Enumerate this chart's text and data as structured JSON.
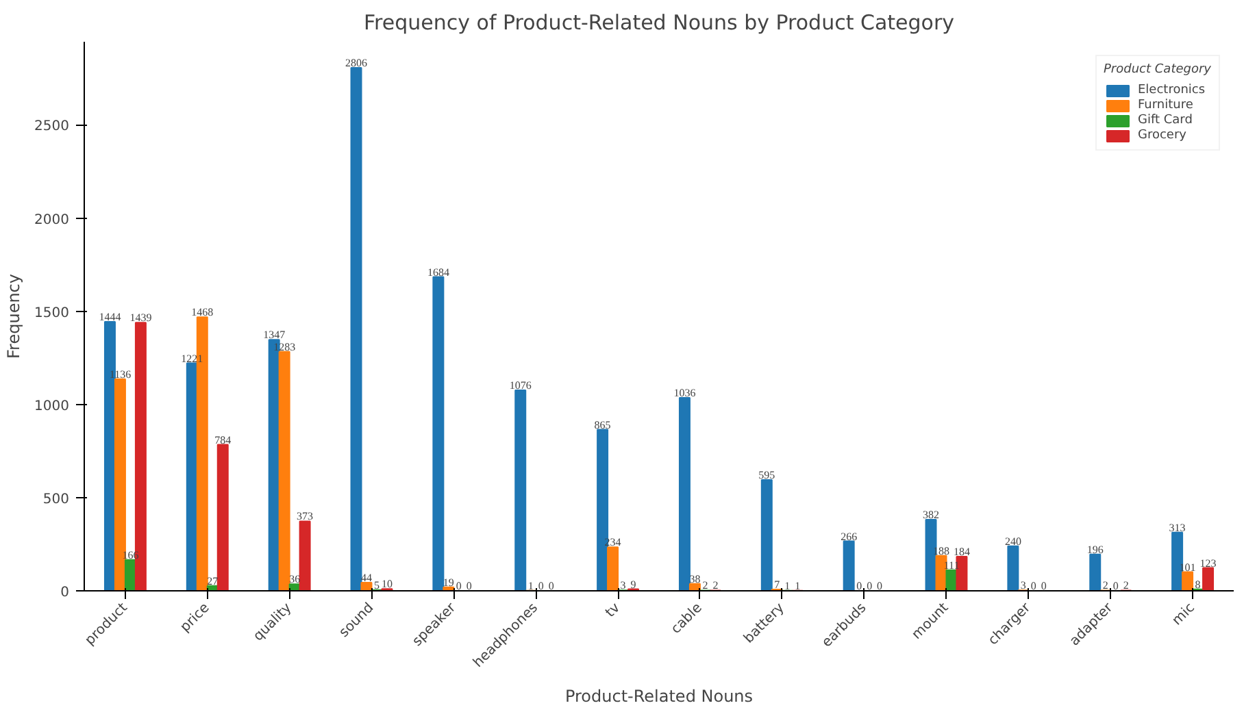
{
  "chart_data": {
    "type": "bar",
    "title": "Frequency of Product-Related Nouns by Product Category",
    "xlabel": "Product-Related Nouns",
    "ylabel": "Frequency",
    "legend_title": "Product Category",
    "categories": [
      "product",
      "price",
      "quality",
      "sound",
      "speaker",
      "headphones",
      "tv",
      "cable",
      "battery",
      "earbuds",
      "mount",
      "charger",
      "adapter",
      "mic"
    ],
    "series": [
      {
        "name": "Electronics",
        "color": "#1f77b4",
        "values": [
          1444,
          1221,
          1347,
          2806,
          1684,
          1076,
          865,
          1036,
          595,
          266,
          382,
          240,
          196,
          313
        ]
      },
      {
        "name": "Furniture",
        "color": "#ff7f0e",
        "values": [
          1136,
          1468,
          1283,
          44,
          19,
          1,
          234,
          38,
          7,
          0,
          188,
          3,
          2,
          101
        ]
      },
      {
        "name": "Gift Card",
        "color": "#2ca02c",
        "values": [
          166,
          27,
          36,
          5,
          0,
          0,
          3,
          2,
          1,
          0,
          111,
          0,
          0,
          8
        ]
      },
      {
        "name": "Grocery",
        "color": "#d62728",
        "values": [
          1439,
          784,
          373,
          10,
          0,
          0,
          9,
          2,
          1,
          0,
          184,
          0,
          2,
          123
        ]
      }
    ],
    "ylim": [
      0,
      2946
    ],
    "yticks": [
      0,
      500,
      1000,
      1500,
      2000,
      2500
    ],
    "grid": false,
    "legend": "top right",
    "data_labels": true
  }
}
